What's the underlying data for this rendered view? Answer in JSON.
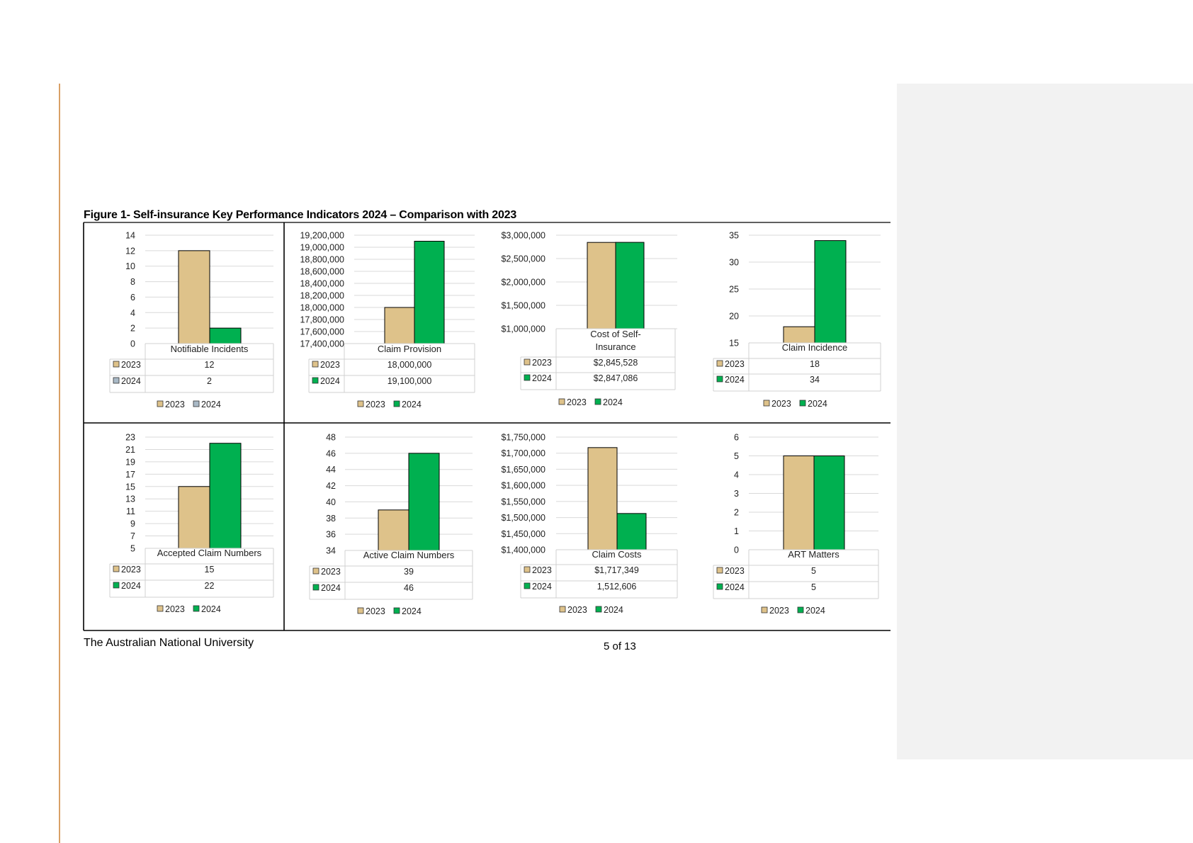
{
  "figure_title": "Figure 1- Self-insurance Key Performance Indicators 2024 – Comparison with 2023",
  "footer": {
    "organisation": "The Australian National University",
    "page": "5 of 13"
  },
  "colors": {
    "2023": "#dec28a",
    "2024": "#00b050",
    "2024_alt": "#a9b9c6",
    "margin_line": "#d9a066",
    "comment_pane": "#f2f2f2"
  },
  "chart_data": [
    {
      "type": "bar",
      "name": "Notifiable Incidents",
      "title_lines": [
        "Notifiable Incidents"
      ],
      "series_names": [
        "2023",
        "2024"
      ],
      "values": [
        12,
        2
      ],
      "value_labels": [
        "12",
        "2"
      ],
      "ticks": [
        0,
        2,
        4,
        6,
        8,
        10,
        12,
        14
      ],
      "tick_labels": [
        "0",
        "2",
        "4",
        "6",
        "8",
        "10",
        "12",
        "14"
      ],
      "ylim": [
        0,
        14
      ],
      "legend_colors": [
        "#dec28a",
        "#a9b9c6"
      ],
      "legend_position": "bottom"
    },
    {
      "type": "bar",
      "name": "Claim Provision",
      "title_lines": [
        "Claim Provision"
      ],
      "series_names": [
        "2023",
        "2024"
      ],
      "values": [
        18000000,
        19100000
      ],
      "value_labels": [
        "18,000,000",
        "19,100,000"
      ],
      "ticks": [
        17400000,
        17600000,
        17800000,
        18000000,
        18200000,
        18400000,
        18600000,
        18800000,
        19000000,
        19200000
      ],
      "tick_labels": [
        "17,400,000",
        "17,600,000",
        "17,800,000",
        "18,000,000",
        "18,200,000",
        "18,400,000",
        "18,600,000",
        "18,800,000",
        "19,000,000",
        "19,200,000"
      ],
      "ylim": [
        17400000,
        19200000
      ],
      "legend_colors": [
        "#dec28a",
        "#00b050"
      ],
      "legend_position": "bottom"
    },
    {
      "type": "bar",
      "name": "Cost of Self-Insurance",
      "title_lines": [
        "Cost of Self-",
        "Insurance"
      ],
      "series_names": [
        "2023",
        "2024"
      ],
      "values": [
        2845528,
        2847086
      ],
      "value_labels": [
        "$2,845,528",
        "$2,847,086"
      ],
      "ticks": [
        1000000,
        1500000,
        2000000,
        2500000,
        3000000
      ],
      "tick_labels": [
        "$1,000,000",
        "$1,500,000",
        "$2,000,000",
        "$2,500,000",
        "$3,000,000"
      ],
      "ylim": [
        1000000,
        3000000
      ],
      "legend_colors": [
        "#dec28a",
        "#00b050"
      ],
      "legend_position": "bottom"
    },
    {
      "type": "bar",
      "name": "Claim Incidence",
      "title_lines": [
        "Claim Incidence"
      ],
      "series_names": [
        "2023",
        "2024"
      ],
      "values": [
        18,
        34
      ],
      "value_labels": [
        "18",
        "34"
      ],
      "ticks": [
        15,
        20,
        25,
        30,
        35
      ],
      "tick_labels": [
        "15",
        "20",
        "25",
        "30",
        "35"
      ],
      "ylim": [
        15,
        35
      ],
      "legend_colors": [
        "#dec28a",
        "#00b050"
      ],
      "legend_position": "bottom"
    },
    {
      "type": "bar",
      "name": "Accepted Claim Numbers",
      "title_lines": [
        "Accepted Claim Numbers"
      ],
      "series_names": [
        "2023",
        "2024"
      ],
      "values": [
        15,
        22
      ],
      "value_labels": [
        "15",
        "22"
      ],
      "ticks": [
        5,
        7,
        9,
        11,
        13,
        15,
        17,
        19,
        21,
        23
      ],
      "tick_labels": [
        "5",
        "7",
        "9",
        "11",
        "13",
        "15",
        "17",
        "19",
        "21",
        "23"
      ],
      "ylim": [
        5,
        23
      ],
      "legend_colors": [
        "#dec28a",
        "#00b050"
      ],
      "legend_position": "bottom"
    },
    {
      "type": "bar",
      "name": "Active Claim Numbers",
      "title_lines": [
        "Active Claim Numbers"
      ],
      "series_names": [
        "2023",
        "2024"
      ],
      "values": [
        39,
        46
      ],
      "value_labels": [
        "39",
        "46"
      ],
      "ticks": [
        34,
        36,
        38,
        40,
        42,
        44,
        46,
        48
      ],
      "tick_labels": [
        "34",
        "36",
        "38",
        "40",
        "42",
        "44",
        "46",
        "48"
      ],
      "ylim": [
        34,
        48
      ],
      "legend_colors": [
        "#dec28a",
        "#00b050"
      ],
      "legend_position": "bottom"
    },
    {
      "type": "bar",
      "name": "Claim Costs",
      "title_lines": [
        "Claim Costs"
      ],
      "series_names": [
        "2023",
        "2024"
      ],
      "values": [
        1717349,
        1512606
      ],
      "value_labels": [
        "$1,717,349",
        "1,512,606"
      ],
      "ticks": [
        1400000,
        1450000,
        1500000,
        1550000,
        1600000,
        1650000,
        1700000,
        1750000
      ],
      "tick_labels": [
        "$1,400,000",
        "$1,450,000",
        "$1,500,000",
        "$1,550,000",
        "$1,600,000",
        "$1,650,000",
        "$1,700,000",
        "$1,750,000"
      ],
      "ylim": [
        1400000,
        1750000
      ],
      "legend_colors": [
        "#dec28a",
        "#00b050"
      ],
      "legend_position": "bottom"
    },
    {
      "type": "bar",
      "name": "ART Matters",
      "title_lines": [
        "ART Matters"
      ],
      "series_names": [
        "2023",
        "2024"
      ],
      "values": [
        5,
        5
      ],
      "value_labels": [
        "5",
        "5"
      ],
      "ticks": [
        0,
        1,
        2,
        3,
        4,
        5,
        6
      ],
      "tick_labels": [
        "0",
        "1",
        "2",
        "3",
        "4",
        "5",
        "6"
      ],
      "ylim": [
        0,
        6
      ],
      "legend_colors": [
        "#dec28a",
        "#00b050"
      ],
      "legend_position": "bottom"
    }
  ]
}
